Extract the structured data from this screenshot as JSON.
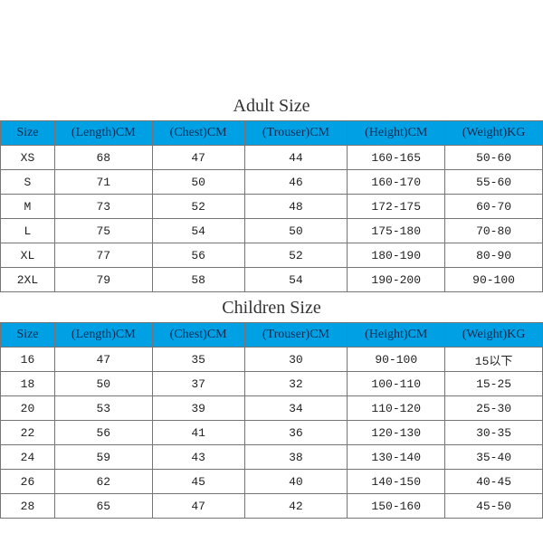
{
  "header_bg": "#00a0e4",
  "border_color": "#757575",
  "adult": {
    "title": "Adult Size",
    "columns": [
      "Size",
      "(Length)CM",
      "(Chest)CM",
      "(Trouser)CM",
      "(Height)CM",
      "(Weight)KG"
    ],
    "rows": [
      [
        "XS",
        "68",
        "47",
        "44",
        "160-165",
        "50-60"
      ],
      [
        "S",
        "71",
        "50",
        "46",
        "160-170",
        "55-60"
      ],
      [
        "M",
        "73",
        "52",
        "48",
        "172-175",
        "60-70"
      ],
      [
        "L",
        "75",
        "54",
        "50",
        "175-180",
        "70-80"
      ],
      [
        "XL",
        "77",
        "56",
        "52",
        "180-190",
        "80-90"
      ],
      [
        "2XL",
        "79",
        "58",
        "54",
        "190-200",
        "90-100"
      ]
    ]
  },
  "children": {
    "title": "Children Size",
    "columns": [
      "Size",
      "(Length)CM",
      "(Chest)CM",
      "(Trouser)CM",
      "(Height)CM",
      "(Weight)KG"
    ],
    "rows": [
      [
        "16",
        "47",
        "35",
        "30",
        "90-100",
        "15以下"
      ],
      [
        "18",
        "50",
        "37",
        "32",
        "100-110",
        "15-25"
      ],
      [
        "20",
        "53",
        "39",
        "34",
        "110-120",
        "25-30"
      ],
      [
        "22",
        "56",
        "41",
        "36",
        "120-130",
        "30-35"
      ],
      [
        "24",
        "59",
        "43",
        "38",
        "130-140",
        "35-40"
      ],
      [
        "26",
        "62",
        "45",
        "40",
        "140-150",
        "40-45"
      ],
      [
        "28",
        "65",
        "47",
        "42",
        "150-160",
        "45-50"
      ]
    ]
  }
}
